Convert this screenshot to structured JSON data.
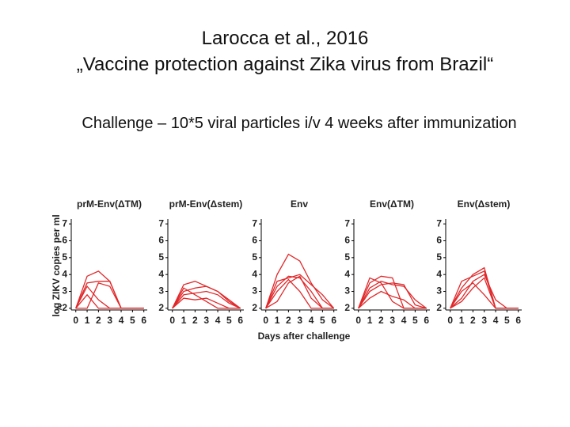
{
  "slide": {
    "title_lines": [
      "Larocca et al., 2016",
      "„Vaccine protection against Zika virus from Brazil“"
    ],
    "subtitle": "Challenge – 10*5 viral particles i/v 4 weeks after immunization"
  },
  "shared_axes": {
    "ylabel": "log ZIKV copies per ml",
    "xlabel": "Days after challenge"
  },
  "chart_data": [
    {
      "type": "line",
      "title": "prM-Env(ΔTM)",
      "x": [
        0,
        1,
        2,
        3,
        4,
        5,
        6
      ],
      "xlim": [
        -0.4,
        6.3
      ],
      "xticks": [
        0,
        1,
        2,
        3,
        4,
        5,
        6
      ],
      "ylim": [
        1.9,
        7.1
      ],
      "yticks": [
        {
          "value": 2,
          "label": "<2"
        },
        3,
        4,
        5,
        6,
        7
      ],
      "series": [
        {
          "color": "#e0282a",
          "values": [
            2,
            3.9,
            4.2,
            3.6,
            2,
            2,
            2
          ]
        },
        {
          "color": "#e0282a",
          "values": [
            2,
            3.5,
            3.6,
            3.6,
            2,
            2,
            2
          ]
        },
        {
          "color": "#e0282a",
          "values": [
            2,
            3.3,
            2.5,
            2,
            2,
            2,
            2
          ]
        },
        {
          "color": "#e0282a",
          "values": [
            2,
            2.8,
            2,
            2,
            2,
            2,
            2
          ]
        },
        {
          "color": "#e0282a",
          "values": [
            2,
            2,
            3.5,
            3.3,
            2,
            2,
            2
          ]
        }
      ]
    },
    {
      "type": "line",
      "title": "prM-Env(Δstem)",
      "x": [
        0,
        1,
        2,
        3,
        4,
        5,
        6
      ],
      "xlim": [
        -0.4,
        6.3
      ],
      "xticks": [
        0,
        1,
        2,
        3,
        4,
        5,
        6
      ],
      "ylim": [
        1.9,
        7.1
      ],
      "yticks": [
        2,
        3,
        4,
        5,
        6,
        7
      ],
      "series": [
        {
          "color": "#e0282a",
          "values": [
            2,
            3.4,
            3.6,
            3.3,
            3.0,
            2.4,
            2
          ]
        },
        {
          "color": "#e0282a",
          "values": [
            2,
            3.0,
            3.2,
            3.3,
            3.0,
            2.5,
            2
          ]
        },
        {
          "color": "#e0282a",
          "values": [
            2,
            2.8,
            2.9,
            3.0,
            2.8,
            2.3,
            2
          ]
        },
        {
          "color": "#e0282a",
          "values": [
            2,
            2.6,
            2.5,
            2.6,
            2.3,
            2,
            2
          ]
        },
        {
          "color": "#e0282a",
          "values": [
            2,
            3.2,
            2.8,
            2.4,
            2,
            2,
            2
          ]
        }
      ]
    },
    {
      "type": "line",
      "title": "Env",
      "x": [
        0,
        1,
        2,
        3,
        4,
        5,
        6
      ],
      "xlim": [
        -0.4,
        6.3
      ],
      "xticks": [
        0,
        1,
        2,
        3,
        4,
        5,
        6
      ],
      "ylim": [
        1.9,
        7.1
      ],
      "yticks": [
        2,
        3,
        4,
        5,
        6,
        7
      ],
      "series": [
        {
          "color": "#e0282a",
          "values": [
            2,
            4.0,
            5.2,
            4.8,
            3.5,
            2.5,
            2
          ]
        },
        {
          "color": "#e0282a",
          "values": [
            2,
            3.6,
            3.8,
            4.0,
            3.4,
            2.8,
            2
          ]
        },
        {
          "color": "#e0282a",
          "values": [
            2,
            3.3,
            3.9,
            3.8,
            3.0,
            2,
            2
          ]
        },
        {
          "color": "#e0282a",
          "values": [
            2,
            3.0,
            3.7,
            3.0,
            2,
            2,
            2
          ]
        },
        {
          "color": "#e0282a",
          "values": [
            2,
            2.4,
            3.5,
            3.9,
            2.6,
            2,
            2
          ]
        }
      ]
    },
    {
      "type": "line",
      "title": "Env(ΔTM)",
      "x": [
        0,
        1,
        2,
        3,
        4,
        5,
        6
      ],
      "xlim": [
        -0.4,
        6.3
      ],
      "xticks": [
        0,
        1,
        2,
        3,
        4,
        5,
        6
      ],
      "ylim": [
        1.9,
        7.1
      ],
      "yticks": [
        2,
        3,
        4,
        5,
        6,
        7
      ],
      "series": [
        {
          "color": "#e0282a",
          "values": [
            2,
            3.5,
            3.9,
            3.8,
            2,
            2,
            2
          ]
        },
        {
          "color": "#e0282a",
          "values": [
            2,
            3.2,
            3.6,
            3.4,
            3.3,
            2.5,
            2
          ]
        },
        {
          "color": "#e0282a",
          "values": [
            2,
            3.0,
            3.4,
            3.5,
            3.4,
            2.2,
            2
          ]
        },
        {
          "color": "#e0282a",
          "values": [
            2,
            2.6,
            3.0,
            2.7,
            2.5,
            2,
            2
          ]
        },
        {
          "color": "#e0282a",
          "values": [
            2,
            3.8,
            3.5,
            2.4,
            2,
            2,
            2
          ]
        }
      ]
    },
    {
      "type": "line",
      "title": "Env(Δstem)",
      "x": [
        0,
        1,
        2,
        3,
        4,
        5,
        6
      ],
      "xlim": [
        -0.4,
        6.3
      ],
      "xticks": [
        0,
        1,
        2,
        3,
        4,
        5,
        6
      ],
      "ylim": [
        1.9,
        7.1
      ],
      "yticks": [
        2,
        3,
        4,
        5,
        6,
        7
      ],
      "series": [
        {
          "color": "#e0282a",
          "values": [
            2,
            3.2,
            4.0,
            4.4,
            2,
            2,
            2
          ]
        },
        {
          "color": "#e0282a",
          "values": [
            2,
            3.6,
            3.9,
            4.2,
            2,
            2,
            2
          ]
        },
        {
          "color": "#e0282a",
          "values": [
            2,
            2.6,
            3.6,
            4.0,
            2.5,
            2,
            2
          ]
        },
        {
          "color": "#e0282a",
          "values": [
            2,
            3.0,
            3.5,
            2.8,
            2,
            2,
            2
          ]
        },
        {
          "color": "#e0282a",
          "values": [
            2,
            2.4,
            3.2,
            3.8,
            2,
            2,
            2
          ]
        }
      ]
    }
  ]
}
